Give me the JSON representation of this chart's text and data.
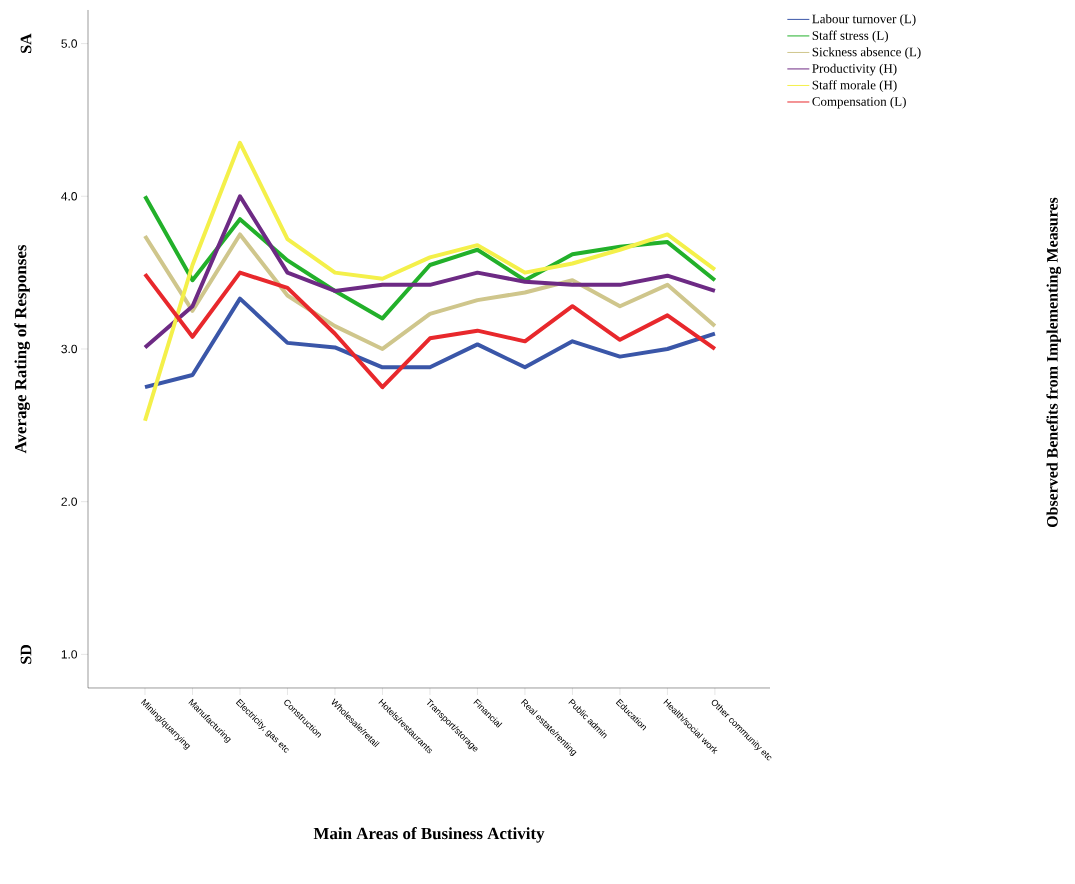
{
  "chart_data": {
    "type": "line",
    "xlabel": "Main Areas of Business Activity",
    "ylabel": "Average Rating of Responses",
    "legend_title": "Observed Benefits from Implementing Measures",
    "categories": [
      "Mining/quarrying",
      "Manufacturing",
      "Electricity, gas etc",
      "Construction",
      "Wholesale/retail",
      "Hotels/restaurants",
      "Transport/storage",
      "Financial",
      "Real estate/renting",
      "Public admin",
      "Education",
      "Health/social work",
      "Other community etc"
    ],
    "series": [
      {
        "name": "Labour turnover (L)",
        "color": "#3a56a8",
        "values": [
          2.75,
          2.83,
          3.33,
          3.04,
          3.01,
          2.88,
          2.88,
          3.03,
          2.88,
          3.05,
          2.95,
          3.0,
          3.1
        ]
      },
      {
        "name": "Staff stress (L)",
        "color": "#22b02a",
        "values": [
          4.0,
          3.45,
          3.85,
          3.58,
          3.38,
          3.2,
          3.55,
          3.65,
          3.45,
          3.62,
          3.67,
          3.7,
          3.45
        ]
      },
      {
        "name": "Sickness absence (L)",
        "color": "#cfc68c",
        "values": [
          3.74,
          3.25,
          3.75,
          3.35,
          3.15,
          3.0,
          3.23,
          3.32,
          3.37,
          3.45,
          3.28,
          3.42,
          3.15
        ]
      },
      {
        "name": "Productivity (H)",
        "color": "#6d2a84",
        "values": [
          3.01,
          3.28,
          4.0,
          3.5,
          3.38,
          3.42,
          3.42,
          3.5,
          3.44,
          3.42,
          3.42,
          3.48,
          3.38
        ]
      },
      {
        "name": "Staff morale (H)",
        "color": "#f4f04a",
        "values": [
          2.53,
          3.55,
          4.35,
          3.72,
          3.5,
          3.46,
          3.6,
          3.68,
          3.5,
          3.56,
          3.65,
          3.75,
          3.52
        ]
      },
      {
        "name": "Compensation (L)",
        "color": "#e8282c",
        "values": [
          3.49,
          3.08,
          3.5,
          3.4,
          3.1,
          2.75,
          3.07,
          3.12,
          3.05,
          3.28,
          3.06,
          3.22,
          3.0
        ]
      }
    ],
    "ylim": [
      0.78,
      5.22
    ],
    "yticks": [
      {
        "value": 1,
        "label": "1.0"
      },
      {
        "value": 2,
        "label": "2.0"
      },
      {
        "value": 3,
        "label": "3.0"
      },
      {
        "value": 4,
        "label": "4.0"
      },
      {
        "value": 5,
        "label": "5.0"
      }
    ],
    "annotations": [
      "SD",
      "SA"
    ],
    "legend": "right",
    "grid": false,
    "marker": "none",
    "line_style": "solid"
  }
}
